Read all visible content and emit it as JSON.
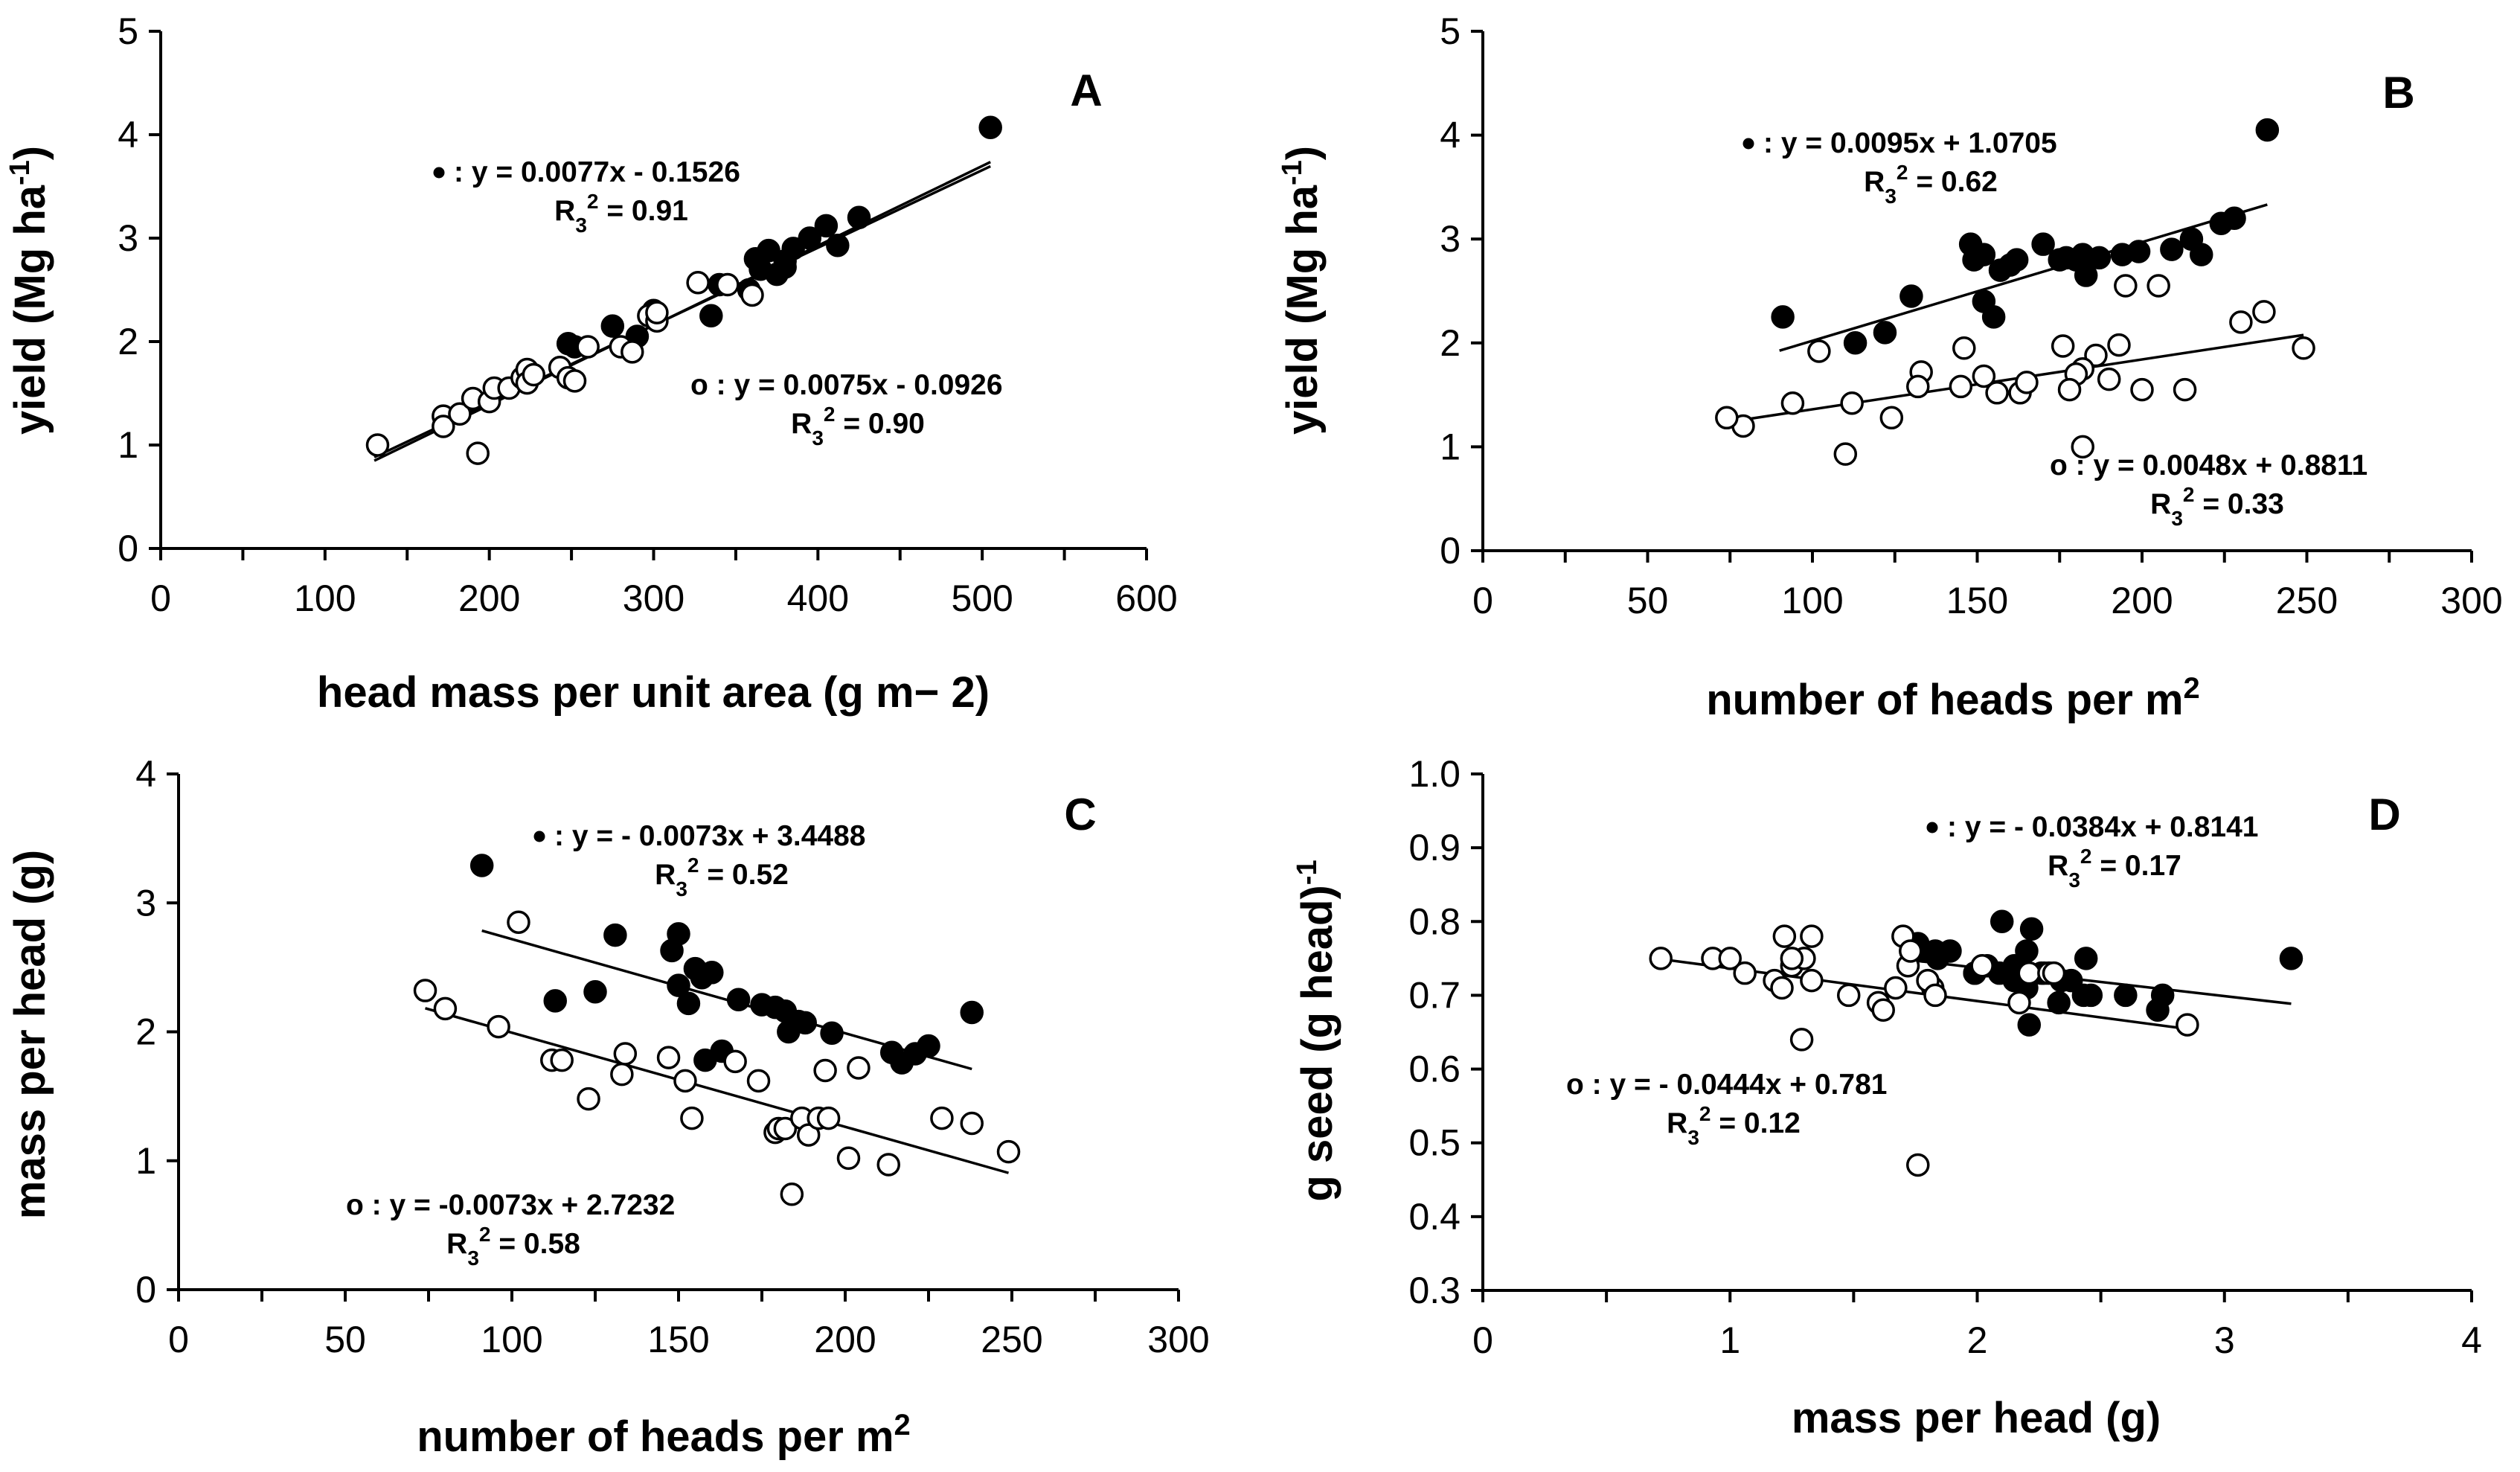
{
  "figure": {
    "chart_data": [
      {
        "panel": "A",
        "type": "scatter",
        "xlabel": "head mass per unit area (g m− 2)",
        "ylabel": "yield (Mg ha-1)",
        "xlim": [
          0,
          600
        ],
        "ylim": [
          0,
          5
        ],
        "xticks": [
          0,
          100,
          200,
          300,
          400,
          500,
          600
        ],
        "yticks": [
          0,
          1,
          2,
          3,
          4,
          5
        ],
        "xminor": [
          50,
          150,
          250,
          350,
          450,
          550
        ],
        "series": [
          {
            "name": "filled",
            "marker": "filled",
            "x": [
              505,
              425,
              405,
              412,
              395,
              385,
              380,
              370,
              380,
              362,
              365,
              375,
              358,
              340,
              335,
              300,
              290,
              275,
              248,
              252
            ],
            "y": [
              4.07,
              3.2,
              3.12,
              2.93,
              3.0,
              2.9,
              2.78,
              2.88,
              2.72,
              2.8,
              2.7,
              2.65,
              2.5,
              2.55,
              2.25,
              2.3,
              2.05,
              2.15,
              1.98,
              1.95
            ]
          },
          {
            "name": "open",
            "marker": "open",
            "x": [
              132,
              172,
              172,
              182,
              190,
              193,
              200,
              203,
              212,
              220,
              223,
              223,
              227,
              243,
              248,
              252,
              260,
              280,
              287,
              297,
              302,
              302,
              327,
              345,
              360
            ],
            "y": [
              1.0,
              1.28,
              1.18,
              1.3,
              1.45,
              0.92,
              1.42,
              1.55,
              1.55,
              1.65,
              1.73,
              1.6,
              1.68,
              1.75,
              1.65,
              1.62,
              1.95,
              1.95,
              1.9,
              2.25,
              2.2,
              2.28,
              2.57,
              2.55,
              2.45
            ]
          }
        ],
        "fits": [
          {
            "marker": "open",
            "slope": 0.0075,
            "intercept": -0.0926,
            "x_range": [
              130,
              505
            ]
          },
          {
            "marker": "filled",
            "slope": 0.0077,
            "intercept": -0.1526,
            "x_range": [
              130,
              505
            ]
          }
        ],
        "annotations": [
          {
            "marker": "filled",
            "eq": ": y = 0.0077x  - 0.1526",
            "r2_prefix": "R",
            "r2_sub": "3",
            "r2_sup": "2",
            "r2_value": " = 0.91"
          },
          {
            "marker": "open",
            "eq": "o : y = 0.0075x  - 0.0926",
            "r2_prefix": "R",
            "r2_sub": "3",
            "r2_sup": "2",
            "r2_value": " = 0.90"
          }
        ]
      },
      {
        "panel": "B",
        "type": "scatter",
        "xlabel": "number of heads per m2",
        "ylabel": "yield (Mg ha-1)",
        "xlim": [
          0,
          300
        ],
        "ylim": [
          0,
          5
        ],
        "xticks": [
          0,
          50,
          100,
          150,
          200,
          250,
          300
        ],
        "yticks": [
          0,
          1,
          2,
          3,
          4,
          5
        ],
        "xminor": [
          25,
          75,
          125,
          175,
          225,
          275
        ],
        "series": [
          {
            "name": "filled",
            "marker": "filled",
            "x": [
              238,
              228,
              224,
              218,
              215,
              209,
              199,
              194,
              187,
              182,
              180,
              177,
              183,
              170,
              175,
              162,
              160,
              157,
              155,
              152,
              148,
              149,
              152,
              130,
              122,
              113,
              91
            ],
            "y": [
              4.05,
              3.2,
              3.15,
              2.85,
              3.0,
              2.9,
              2.88,
              2.85,
              2.82,
              2.85,
              2.8,
              2.82,
              2.65,
              2.95,
              2.8,
              2.8,
              2.75,
              2.7,
              2.25,
              2.85,
              2.95,
              2.8,
              2.4,
              2.45,
              2.1,
              2.0,
              2.25
            ]
          },
          {
            "name": "open",
            "marker": "open",
            "x": [
              249,
              237,
              230,
              213,
              205,
              195,
              200,
              193,
              190,
              186,
              182,
              180,
              178,
              176,
              163,
              156,
              152,
              146,
              133,
              124,
              112,
              110,
              102,
              94,
              79,
              74,
              182,
              165,
              145,
              132
            ],
            "y": [
              1.95,
              2.3,
              2.2,
              1.55,
              2.55,
              2.55,
              1.55,
              1.98,
              1.65,
              1.88,
              1.75,
              1.7,
              1.55,
              1.97,
              1.52,
              1.52,
              1.68,
              1.95,
              1.72,
              1.28,
              1.42,
              0.93,
              1.92,
              1.42,
              1.2,
              1.28,
              1.0,
              1.62,
              1.58,
              1.58
            ]
          }
        ],
        "fits": [
          {
            "marker": "open",
            "slope": 0.0048,
            "intercept": 0.8811,
            "x_range": [
              74,
              249
            ]
          },
          {
            "marker": "filled",
            "slope": 0.0095,
            "intercept": 1.0705,
            "x_range": [
              90,
              238
            ]
          }
        ],
        "annotations": [
          {
            "marker": "filled",
            "eq": ": y = 0.0095x + 1.0705",
            "r2_prefix": "R",
            "r2_sub": "3",
            "r2_sup": "2",
            "r2_value": " = 0.62"
          },
          {
            "marker": "open",
            "eq": "o : y = 0.0048x  + 0.8811",
            "r2_prefix": "R",
            "r2_sub": "3",
            "r2_sup": "2",
            "r2_value": " = 0.33"
          }
        ]
      },
      {
        "panel": "C",
        "type": "scatter",
        "xlabel": "number of heads per m2",
        "ylabel": "mass per head (g)",
        "xlim": [
          0,
          300
        ],
        "ylim": [
          0,
          4
        ],
        "xticks": [
          0,
          50,
          100,
          150,
          200,
          250,
          300
        ],
        "yticks": [
          0,
          1,
          2,
          3,
          4
        ],
        "xminor": [
          25,
          75,
          125,
          175,
          225,
          275
        ],
        "series": [
          {
            "name": "filled",
            "marker": "filled",
            "x": [
              91,
              131,
              150,
              148,
              150,
              155,
              153,
              157,
              160,
              163,
              158,
              168,
              175,
              179,
              182,
              183,
              186,
              188,
              196,
              214,
              217,
              221,
              225,
              238,
              113,
              125
            ],
            "y": [
              3.29,
              2.75,
              2.76,
              2.63,
              2.36,
              2.49,
              2.22,
              2.42,
              2.46,
              1.85,
              1.78,
              2.25,
              2.21,
              2.19,
              2.16,
              2.0,
              2.08,
              2.07,
              1.99,
              1.84,
              1.76,
              1.83,
              1.89,
              2.15,
              2.24,
              2.31
            ]
          },
          {
            "name": "open",
            "marker": "open",
            "x": [
              74,
              80,
              96,
              102,
              112,
              115,
              123,
              133,
              134,
              147,
              152,
              154,
              167,
              174,
              179,
              180,
              182,
              184,
              187,
              189,
              192,
              194,
              195,
              201,
              204,
              213,
              229,
              238,
              249
            ],
            "y": [
              2.32,
              2.18,
              2.04,
              2.85,
              1.78,
              1.78,
              1.48,
              1.67,
              1.83,
              1.8,
              1.62,
              1.33,
              1.77,
              1.62,
              1.22,
              1.25,
              1.25,
              0.74,
              1.33,
              1.2,
              1.33,
              1.7,
              1.33,
              1.02,
              1.72,
              0.97,
              1.33,
              1.29,
              1.07
            ]
          }
        ],
        "fits": [
          {
            "marker": "filled",
            "slope": -0.0073,
            "intercept": 3.4488,
            "x_range": [
              91,
              238
            ]
          },
          {
            "marker": "open",
            "slope": -0.0073,
            "intercept": 2.7232,
            "x_range": [
              74,
              249
            ]
          }
        ],
        "annotations": [
          {
            "marker": "filled",
            "eq": ": y = - 0.0073x + 3.4488",
            "r2_prefix": "R",
            "r2_sub": "3",
            "r2_sup": "2",
            "r2_value": " = 0.52"
          },
          {
            "marker": "open",
            "eq": "o : y = -0.0073x + 2.7232",
            "r2_prefix": "R",
            "r2_sub": "3",
            "r2_sup": "2",
            "r2_value": " = 0.58"
          }
        ]
      },
      {
        "panel": "D",
        "type": "scatter",
        "xlabel": "mass per head (g)",
        "ylabel": "g seed (g head)-1",
        "xlim": [
          0,
          4
        ],
        "ylim": [
          0.3,
          1.0
        ],
        "xticks": [
          0,
          1,
          2,
          3,
          4
        ],
        "yticks": [
          0.3,
          0.4,
          0.5,
          0.6,
          0.7,
          0.8,
          0.9,
          1.0
        ],
        "xminor": [
          0.5,
          1.5,
          2.5,
          3.5
        ],
        "series": [
          {
            "name": "filled",
            "marker": "filled",
            "x": [
              1.78,
              1.84,
              1.76,
              1.83,
              1.89,
              1.99,
              2.04,
              2.09,
              2.1,
              2.15,
              2.15,
              2.2,
              2.22,
              2.26,
              2.27,
              2.33,
              2.34,
              2.38,
              2.43,
              2.44,
              2.46,
              2.6,
              2.73,
              2.75,
              3.27,
              2.2,
              2.21,
              1.99
            ],
            "y": [
              0.76,
              0.75,
              0.77,
              0.76,
              0.76,
              0.73,
              0.74,
              0.73,
              0.8,
              0.72,
              0.74,
              0.76,
              0.79,
              0.73,
              0.73,
              0.69,
              0.72,
              0.72,
              0.7,
              0.75,
              0.7,
              0.7,
              0.68,
              0.7,
              0.75,
              0.71,
              0.66,
              0.73
            ]
          },
          {
            "name": "open",
            "marker": "open",
            "x": [
              0.72,
              0.93,
              1.0,
              1.06,
              1.18,
              1.21,
              1.22,
              1.25,
              1.29,
              1.3,
              1.33,
              1.33,
              1.48,
              1.6,
              1.62,
              1.67,
              1.7,
              1.72,
              1.73,
              1.76,
              1.82,
              1.8,
              1.83,
              2.02,
              2.17,
              2.21,
              2.29,
              2.31,
              2.85,
              1.25
            ],
            "y": [
              0.75,
              0.75,
              0.75,
              0.73,
              0.72,
              0.71,
              0.78,
              0.74,
              0.64,
              0.75,
              0.72,
              0.78,
              0.7,
              0.69,
              0.68,
              0.71,
              0.78,
              0.74,
              0.76,
              0.47,
              0.71,
              0.72,
              0.7,
              0.74,
              0.69,
              0.73,
              0.73,
              0.73,
              0.66,
              0.75
            ]
          }
        ],
        "fits": [
          {
            "marker": "filled",
            "slope": -0.0384,
            "intercept": 0.8141,
            "x_range": [
              1.73,
              3.27
            ]
          },
          {
            "marker": "open",
            "slope": -0.0444,
            "intercept": 0.781,
            "x_range": [
              0.72,
              2.85
            ]
          }
        ],
        "annotations": [
          {
            "marker": "filled",
            "eq": ": y = - 0.0384x + 0.8141",
            "r2_prefix": "R",
            "r2_sub": "3",
            "r2_sup": "2",
            "r2_value": " = 0.17"
          },
          {
            "marker": "open",
            "eq": "o : y = - 0.0444x + 0.781",
            "r2_prefix": "R",
            "r2_sub": "3",
            "r2_sup": "2",
            "r2_value": " = 0.12"
          }
        ]
      }
    ]
  }
}
